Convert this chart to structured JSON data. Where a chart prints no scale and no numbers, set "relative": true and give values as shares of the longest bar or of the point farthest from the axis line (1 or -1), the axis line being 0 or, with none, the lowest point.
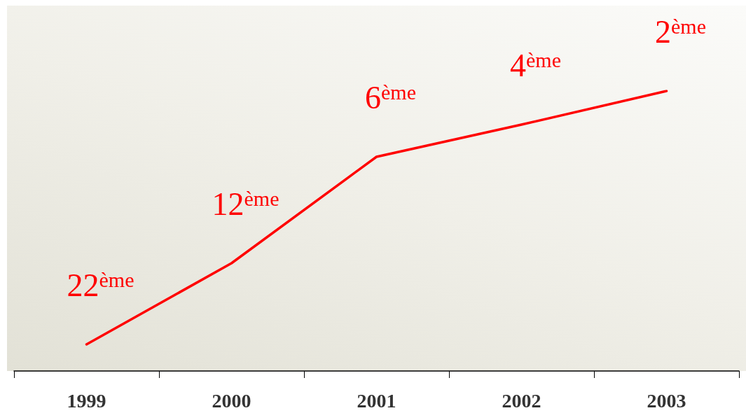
{
  "chart_data": {
    "type": "line",
    "relative": true,
    "categories": [
      "1999",
      "2000",
      "2001",
      "2002",
      "2003"
    ],
    "series": [
      {
        "color": "#ff0000",
        "values": [
          0.095,
          0.385,
          0.765,
          0.88,
          1
        ]
      }
    ],
    "annotations": [
      {
        "text": "22$^{ème}$",
        "x": "1999",
        "y": 0.095
      },
      {
        "text": "12$^{ème}$",
        "x": "2000",
        "y": 0.385
      },
      {
        "text": "6$^{ème}$",
        "x": "2001",
        "y": 0.765
      },
      {
        "text": "4$^{ème}$",
        "x": "2002",
        "y": 0.88
      },
      {
        "text": "2$^{ème}$",
        "x": "2003",
        "y": 1
      }
    ],
    "marker": "none",
    "grid": false,
    "tick_labels": "x"
  }
}
